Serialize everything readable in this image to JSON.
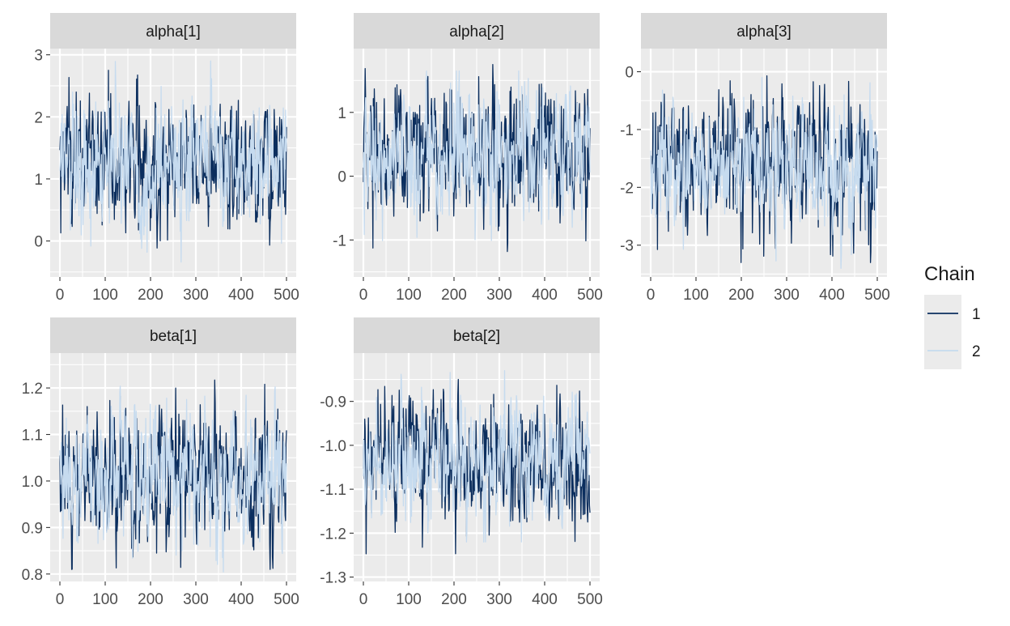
{
  "chart_data": {
    "type": "line",
    "chart_kind": "trace plot (faceted, 5 panels)",
    "grid": true,
    "legend": {
      "title": "Chain",
      "placement": "right",
      "entries": [
        {
          "label": "1",
          "color": "#0b2e5e"
        },
        {
          "label": "2",
          "color": "#c6dbef"
        }
      ]
    },
    "x": {
      "range": [
        0,
        500
      ],
      "ticks": [
        0,
        100,
        200,
        300,
        400,
        500
      ],
      "tick_labels": [
        "0",
        "100",
        "200",
        "300",
        "400",
        "500"
      ]
    },
    "iterations": 500,
    "panels": [
      {
        "title": "alpha[1]",
        "ylim": [
          -0.58,
          3.1
        ],
        "ticks": [
          0,
          1,
          2,
          3
        ],
        "tick_labels": [
          "0",
          "1",
          "2",
          "3"
        ],
        "series": [
          {
            "chain": "1",
            "color": "#0b2e5e",
            "summary": {
              "center": 1.3,
              "sd": 0.55,
              "min": -0.3,
              "max": 2.75
            }
          },
          {
            "chain": "2",
            "color": "#c6dbef",
            "summary": {
              "center": 1.3,
              "sd": 0.55,
              "min": -0.45,
              "max": 2.9
            }
          }
        ]
      },
      {
        "title": "alpha[2]",
        "ylim": [
          -1.58,
          2.0
        ],
        "ticks": [
          -1,
          0,
          1
        ],
        "tick_labels": [
          "-1",
          "0",
          "1"
        ],
        "series": [
          {
            "chain": "1",
            "color": "#0b2e5e",
            "summary": {
              "center": 0.35,
              "sd": 0.55,
              "min": -1.35,
              "max": 1.75
            }
          },
          {
            "chain": "2",
            "color": "#c6dbef",
            "summary": {
              "center": 0.35,
              "sd": 0.55,
              "min": -1.45,
              "max": 1.65
            }
          }
        ]
      },
      {
        "title": "alpha[3]",
        "ylim": [
          -3.55,
          0.4
        ],
        "ticks": [
          -3,
          -2,
          -1,
          0
        ],
        "tick_labels": [
          "-3",
          "-2",
          "-1",
          "0"
        ],
        "series": [
          {
            "chain": "1",
            "color": "#0b2e5e",
            "summary": {
              "center": -1.6,
              "sd": 0.6,
              "min": -3.3,
              "max": 0.2
            }
          },
          {
            "chain": "2",
            "color": "#c6dbef",
            "summary": {
              "center": -1.6,
              "sd": 0.55,
              "min": -3.4,
              "max": -0.1
            }
          }
        ]
      },
      {
        "title": "beta[1]",
        "ylim": [
          0.784,
          1.275
        ],
        "ticks": [
          0.8,
          0.9,
          1.0,
          1.1,
          1.2
        ],
        "tick_labels": [
          "0.8",
          "0.9",
          "1.0",
          "1.1",
          "1.2"
        ],
        "series": [
          {
            "chain": "1",
            "color": "#0b2e5e",
            "summary": {
              "center": 1.01,
              "sd": 0.075,
              "min": 0.81,
              "max": 1.23
            }
          },
          {
            "chain": "2",
            "color": "#c6dbef",
            "summary": {
              "center": 1.01,
              "sd": 0.07,
              "min": 0.8,
              "max": 1.25
            }
          }
        ]
      },
      {
        "title": "beta[2]",
        "ylim": [
          -1.31,
          -0.79
        ],
        "ticks": [
          -1.3,
          -1.2,
          -1.1,
          -1.0,
          -0.9
        ],
        "tick_labels": [
          "-1.3",
          "-1.2",
          "-1.1",
          "-1.0",
          "-0.9"
        ],
        "series": [
          {
            "chain": "1",
            "color": "#0b2e5e",
            "summary": {
              "center": -1.04,
              "sd": 0.07,
              "min": -1.28,
              "max": -0.85
            }
          },
          {
            "chain": "2",
            "color": "#c6dbef",
            "summary": {
              "center": -1.04,
              "sd": 0.07,
              "min": -1.22,
              "max": -0.83
            }
          }
        ]
      }
    ]
  }
}
